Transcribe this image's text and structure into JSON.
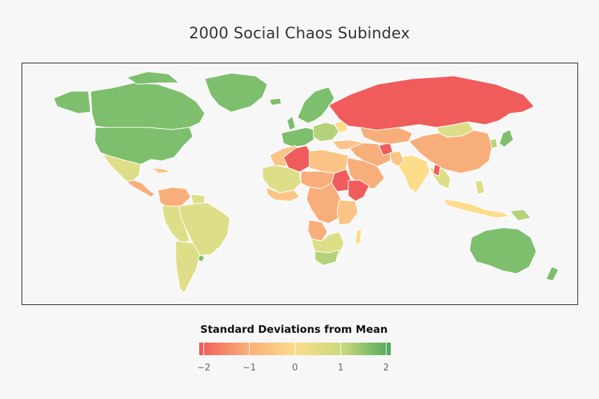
{
  "title": "2000 Social Chaos Subindex",
  "legend": {
    "title": "Standard Deviations from Mean",
    "ticks": [
      {
        "value": -2,
        "label": "−2"
      },
      {
        "value": -1,
        "label": "−1"
      },
      {
        "value": 0,
        "label": "0"
      },
      {
        "value": 1,
        "label": "1"
      },
      {
        "value": 2,
        "label": "2"
      }
    ],
    "range": [
      -2.1,
      2.1
    ],
    "colors": {
      "very_low": "#f05a5a",
      "low": "#f8ad78",
      "mid": "#fcdc8a",
      "high": "#c9d97c",
      "very_high": "#4daa5e"
    }
  },
  "map": {
    "type": "choropleth",
    "projection": "world",
    "colors": {
      "red": "#f05c5c",
      "orange": "#f8ae7a",
      "light_orange": "#fbc486",
      "yellow": "#fcdd8c",
      "khaki": "#dfde88",
      "yellowgreen": "#b5d27a",
      "green": "#7dbf6d",
      "ocean": "#f7f7f7",
      "border": "#ffffff"
    }
  }
}
